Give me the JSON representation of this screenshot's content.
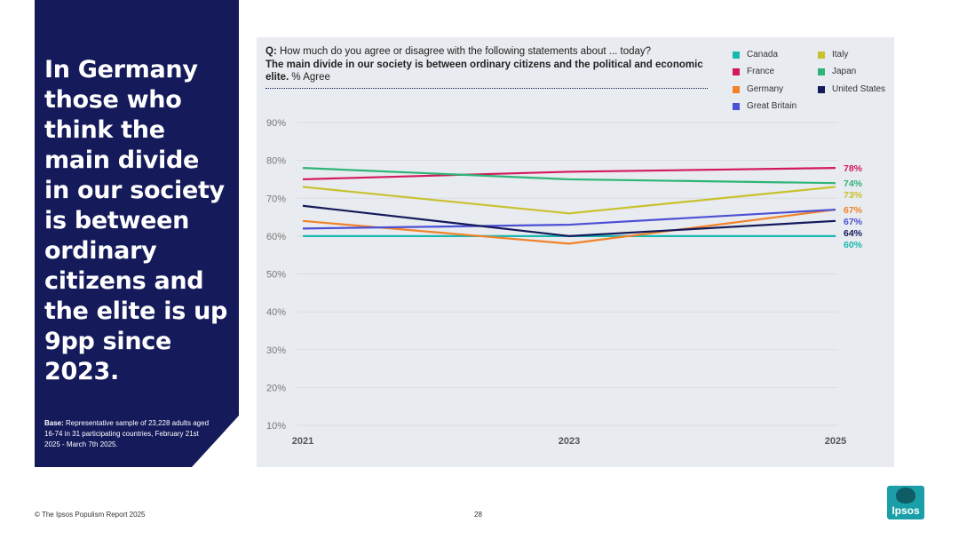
{
  "side_panel": {
    "headline": "In Germany those who think the main divide in our society is between ordinary citizens and the elite is up 9pp since 2023.",
    "base_label": "Base:",
    "base_text": "Representative sample of 23,228 adults aged 16-74 in 31 participating countries, February 21st 2025 - March 7th 2025."
  },
  "question": {
    "prefix": "Q:",
    "text": "How much do you agree or disagree with the following statements about ... today?",
    "statement": "The main divide in our society is between ordinary citizens and the political and economic elite.",
    "suffix": "% Agree"
  },
  "chart_data": {
    "type": "line",
    "x": [
      "2021",
      "2023",
      "2025"
    ],
    "ylim": [
      10,
      90
    ],
    "yticks": [
      "90%",
      "80%",
      "70%",
      "60%",
      "50%",
      "40%",
      "30%",
      "20%",
      "10%"
    ],
    "grid": true,
    "legend_position": "top-right",
    "series": [
      {
        "name": "Canada",
        "color": "#1ab7b1",
        "values": [
          60,
          60,
          60
        ],
        "end_label": "60%"
      },
      {
        "name": "France",
        "color": "#d2195c",
        "values": [
          75,
          77,
          78
        ],
        "end_label": "78%"
      },
      {
        "name": "Germany",
        "color": "#f28128",
        "values": [
          64,
          58,
          67
        ],
        "end_label": "67%"
      },
      {
        "name": "Great Britain",
        "color": "#4c50d4",
        "values": [
          62,
          63,
          67
        ],
        "end_label": "67%"
      },
      {
        "name": "Italy",
        "color": "#c9c12c",
        "values": [
          73,
          66,
          73
        ],
        "end_label": "73%"
      },
      {
        "name": "Japan",
        "color": "#2db577",
        "values": [
          78,
          75,
          74
        ],
        "end_label": "74%"
      },
      {
        "name": "United States",
        "color": "#141a5a",
        "values": [
          68,
          60,
          64
        ],
        "end_label": "64%"
      }
    ]
  },
  "footer": {
    "credit": "© The Ipsos Populism Report 2025",
    "page": "28",
    "logo_text": "Ipsos"
  }
}
